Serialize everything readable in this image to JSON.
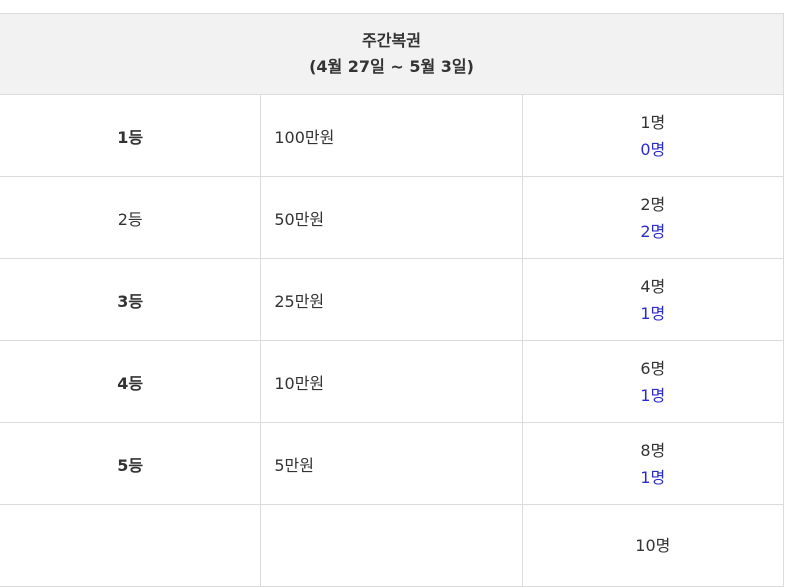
{
  "header": {
    "title": "주간복권",
    "period": "(4월 27일 ~ 5월 3일)"
  },
  "rows": [
    {
      "rank": "1등",
      "bold": true,
      "prize": "100만원",
      "total": "1명",
      "winners": "0명"
    },
    {
      "rank": "2등",
      "bold": false,
      "prize": "50만원",
      "total": "2명",
      "winners": "2명"
    },
    {
      "rank": "3등",
      "bold": true,
      "prize": "25만원",
      "total": "4명",
      "winners": "1명"
    },
    {
      "rank": "4등",
      "bold": true,
      "prize": "10만원",
      "total": "6명",
      "winners": "1명"
    },
    {
      "rank": "5등",
      "bold": true,
      "prize": "5만원",
      "total": "8명",
      "winners": "1명"
    },
    {
      "rank": "",
      "bold": false,
      "prize": "",
      "total": "10명",
      "winners": ""
    }
  ],
  "colors": {
    "winners": "#2b2bcc",
    "header_bg": "#f2f2f2"
  }
}
